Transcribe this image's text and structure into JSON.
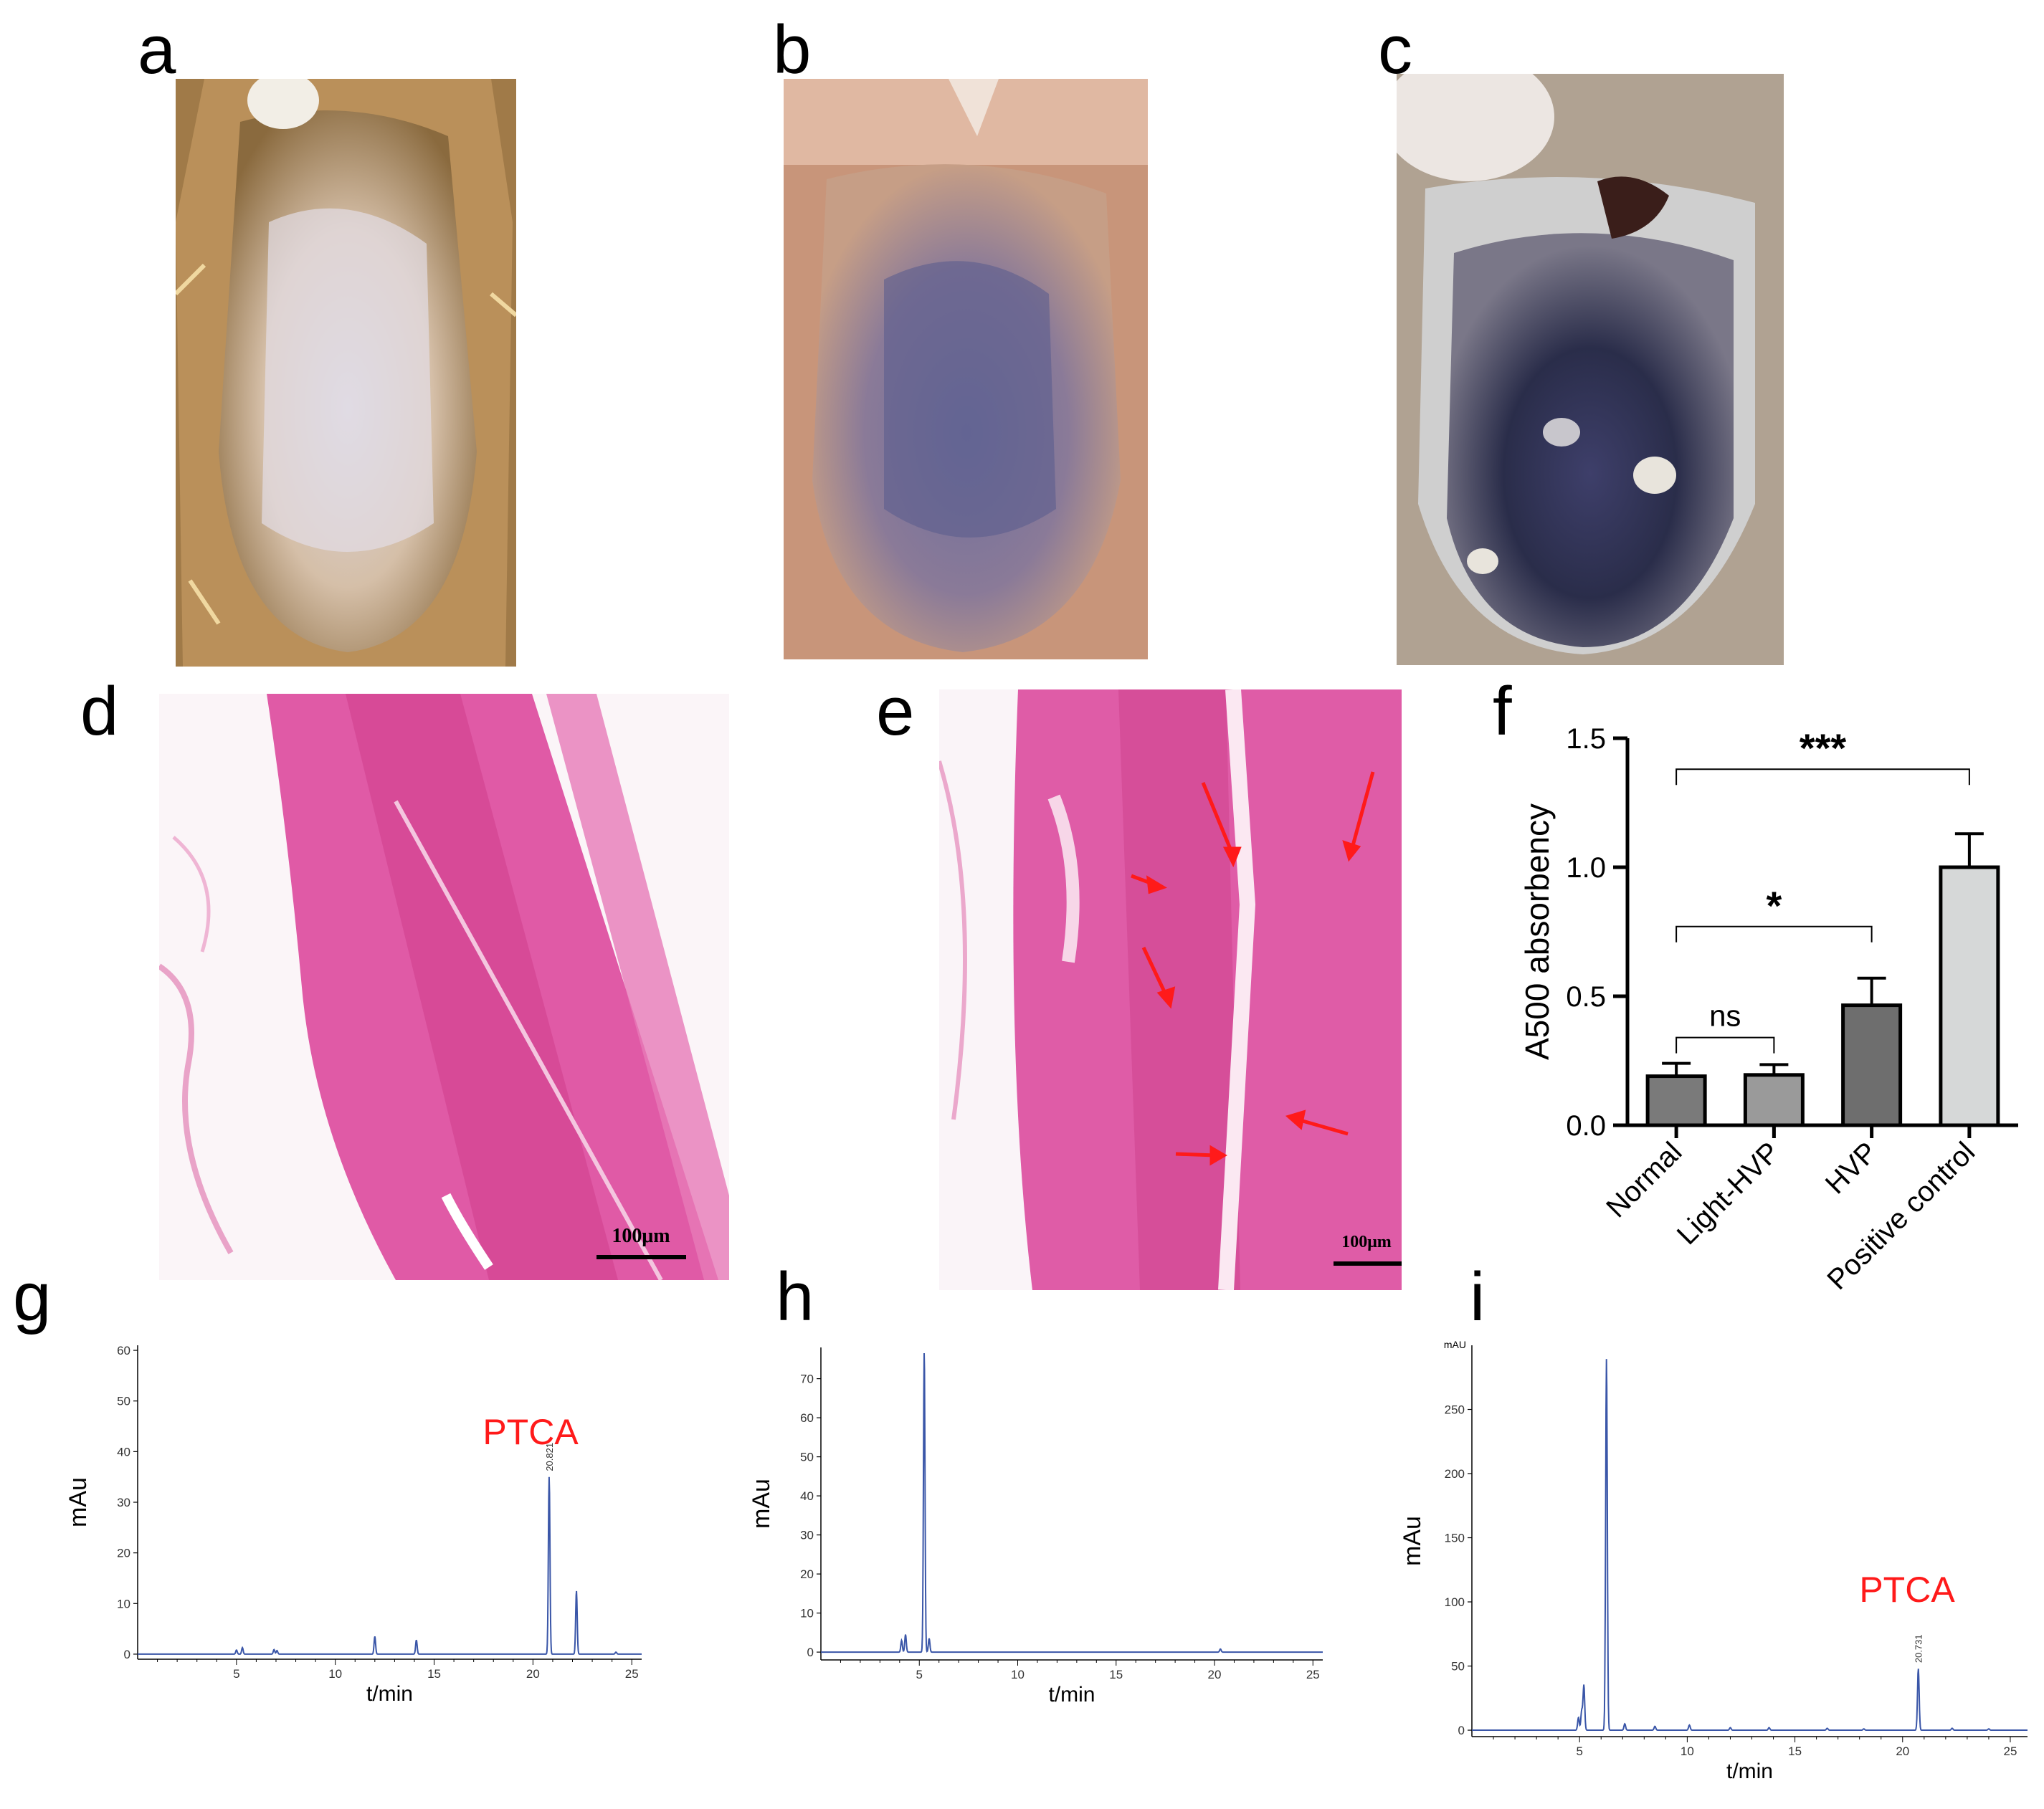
{
  "panels": {
    "a": {
      "letter": "a"
    },
    "b": {
      "letter": "b"
    },
    "c": {
      "letter": "c"
    },
    "d": {
      "letter": "d",
      "scale_bar": "100μm"
    },
    "e": {
      "letter": "e",
      "scale_bar": "100μm"
    },
    "f": {
      "letter": "f"
    },
    "g": {
      "letter": "g"
    },
    "h": {
      "letter": "h"
    },
    "i": {
      "letter": "i"
    }
  },
  "colors": {
    "trace": "#3a56a8",
    "annotation": "#ff1a1a",
    "bar_normal": "#7a7a7a",
    "bar_light": "#9a9a9a",
    "bar_hvp": "#6e6e6e",
    "bar_positive": "#d6d8d8"
  },
  "chart_data": [
    {
      "panel": "f",
      "type": "bar",
      "ylabel": "A500 absorbency",
      "xlabel": "",
      "ylim": [
        0,
        1.5
      ],
      "yticks": [
        "0.0",
        "0.5",
        "1.0",
        "1.5"
      ],
      "categories": [
        "Normal",
        "Light-HVP",
        "HVP",
        "Positive control"
      ],
      "values": [
        0.19,
        0.195,
        0.465,
        1.0
      ],
      "errors": [
        0.05,
        0.04,
        0.105,
        0.13
      ],
      "significance": [
        {
          "from": "Normal",
          "to": "Light-HVP",
          "label": "ns",
          "level": 0.34
        },
        {
          "from": "Normal",
          "to": "HVP",
          "label": "*",
          "level": 0.77
        },
        {
          "from": "Normal",
          "to": "Positive control",
          "label": "***",
          "level": 1.38
        }
      ]
    },
    {
      "panel": "g",
      "type": "line",
      "xlabel": "t/min",
      "ylabel": "mAu",
      "xlim": [
        0,
        25.5
      ],
      "ylim": [
        -1,
        61
      ],
      "xticks": [
        "5",
        "10",
        "15",
        "20",
        "25"
      ],
      "yticks": [
        "0",
        "10",
        "20",
        "30",
        "40",
        "50",
        "60"
      ],
      "peaks": [
        [
          5.0,
          0.8
        ],
        [
          5.3,
          1.3
        ],
        [
          6.9,
          0.9
        ],
        [
          7.05,
          0.7
        ],
        [
          12.0,
          3.5
        ],
        [
          14.1,
          2.8
        ],
        [
          20.82,
          35.0
        ],
        [
          22.2,
          12.5
        ],
        [
          24.2,
          0.4
        ]
      ],
      "peak_label": {
        "x": 20.821,
        "text": "20.821"
      },
      "annotation": "PTCA"
    },
    {
      "panel": "h",
      "type": "line",
      "xlabel": "t/min",
      "ylabel": "mAu",
      "xlim": [
        0,
        25.5
      ],
      "ylim": [
        -2,
        78
      ],
      "xticks": [
        "5",
        "10",
        "15",
        "20",
        "25"
      ],
      "yticks": [
        "0",
        "10",
        "20",
        "30",
        "40",
        "50",
        "60",
        "70"
      ],
      "peaks": [
        [
          4.1,
          3.0
        ],
        [
          4.3,
          4.5
        ],
        [
          5.25,
          77.0
        ],
        [
          5.5,
          3.5
        ],
        [
          20.3,
          0.8
        ]
      ]
    },
    {
      "panel": "i",
      "type": "line",
      "xlabel": "t/min",
      "ylabel": "mAu",
      "ytitle_small": "mAU",
      "xlim": [
        0,
        25.8
      ],
      "ylim": [
        -5,
        300
      ],
      "xticks": [
        "5",
        "10",
        "15",
        "20",
        "25"
      ],
      "yticks": [
        "0",
        "50",
        "100",
        "150",
        "200",
        "250"
      ],
      "peaks": [
        [
          4.95,
          10.0
        ],
        [
          5.1,
          15.0
        ],
        [
          5.2,
          35.0
        ],
        [
          6.25,
          290.0
        ],
        [
          7.1,
          5.0
        ],
        [
          8.5,
          3.0
        ],
        [
          10.1,
          4.0
        ],
        [
          12.0,
          2.0
        ],
        [
          13.8,
          2.0
        ],
        [
          16.5,
          1.5
        ],
        [
          18.2,
          1.0
        ],
        [
          20.73,
          48.0
        ],
        [
          22.3,
          1.5
        ],
        [
          24.0,
          1.0
        ]
      ],
      "peak_label": {
        "x": 20.731,
        "text": "20.731"
      },
      "annotation": "PTCA"
    }
  ]
}
